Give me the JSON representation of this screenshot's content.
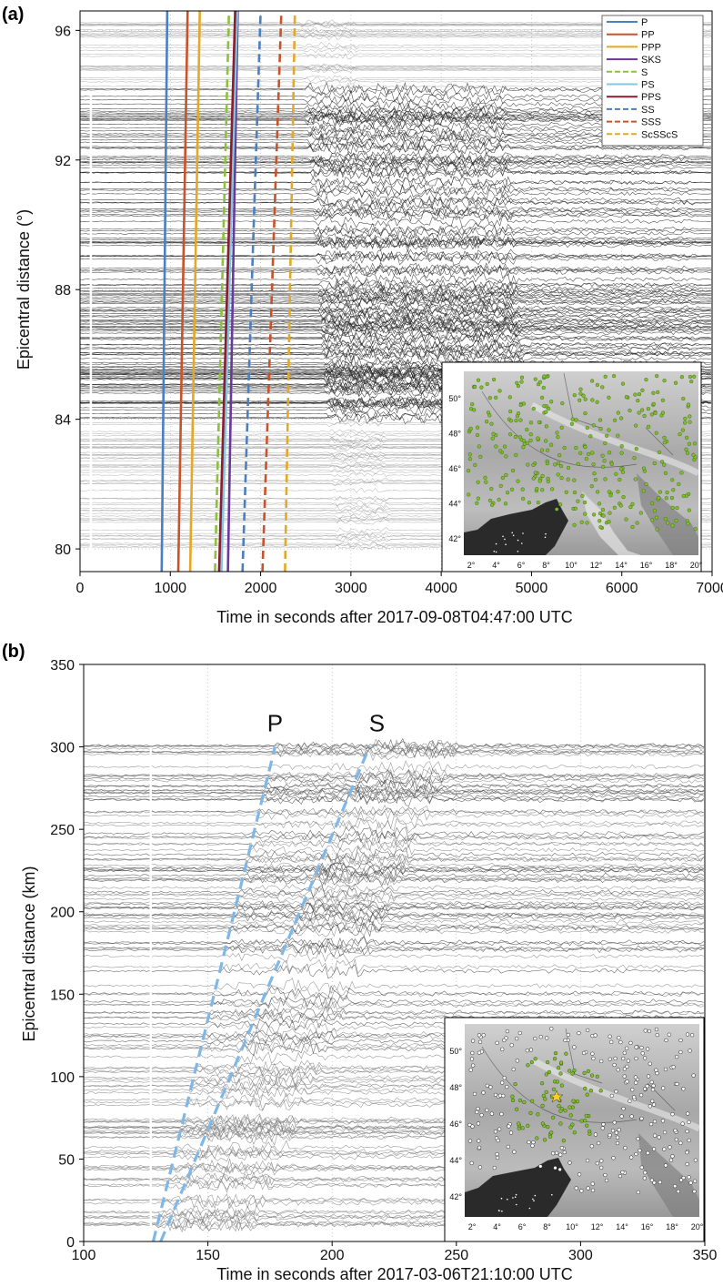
{
  "chart_data": [
    {
      "type": "line",
      "panel_label": "(a)",
      "xlabel": "Time in seconds after 2017-09-08T04:47:00 UTC",
      "ylabel": "Epicentral distance (°)",
      "xlim": [
        0,
        7000
      ],
      "ylim": [
        79.3,
        96.6
      ],
      "xticks": [
        0,
        1000,
        2000,
        3000,
        4000,
        5000,
        6000,
        7000
      ],
      "xtick_labels": [
        "0",
        "1000",
        "2000",
        "3000",
        "4000",
        "5000",
        "6000",
        "7000"
      ],
      "yticks": [
        80,
        84,
        88,
        92,
        96
      ],
      "ytick_labels": [
        "80",
        "84",
        "88",
        "92",
        "96"
      ],
      "grid": true,
      "legend_position": "top-right",
      "series": [
        {
          "name": "P",
          "color": "#4a7fc1",
          "dash": "solid",
          "x": [
            904,
            966
          ],
          "y": [
            79.3,
            96.6
          ]
        },
        {
          "name": "PP",
          "color": "#c8532a",
          "dash": "solid",
          "x": [
            1088,
            1192
          ],
          "y": [
            79.3,
            96.6
          ]
        },
        {
          "name": "PPP",
          "color": "#e3a826",
          "dash": "solid",
          "x": [
            1220,
            1326
          ],
          "y": [
            79.3,
            96.6
          ]
        },
        {
          "name": "SKS",
          "color": "#6a3a9a",
          "dash": "solid",
          "x": [
            1638,
            1746
          ],
          "y": [
            79.3,
            96.6
          ]
        },
        {
          "name": "S",
          "color": "#8bc23c",
          "dash": "dashed",
          "x": [
            1495,
            1650
          ],
          "y": [
            79.3,
            96.6
          ]
        },
        {
          "name": "PS",
          "color": "#80c8e0",
          "dash": "solid",
          "x": [
            1565,
            1740
          ],
          "y": [
            79.3,
            96.6
          ]
        },
        {
          "name": "PPS",
          "color": "#8a1d2e",
          "dash": "solid",
          "x": [
            1540,
            1718
          ],
          "y": [
            79.3,
            96.6
          ]
        },
        {
          "name": "SS",
          "color": "#4a7fc1",
          "dash": "dashed",
          "x": [
            1800,
            2000
          ],
          "y": [
            79.3,
            96.6
          ]
        },
        {
          "name": "SSS",
          "color": "#c8532a",
          "dash": "dashed",
          "x": [
            2020,
            2230
          ],
          "y": [
            79.3,
            96.6
          ]
        },
        {
          "name": "ScSScS",
          "color": "#e3a826",
          "dash": "dashed",
          "x": [
            2270,
            2380
          ],
          "y": [
            79.3,
            96.6
          ]
        }
      ],
      "inset_map": {
        "lon_ticks": [
          "2°",
          "4°",
          "6°",
          "8°",
          "10°",
          "12°",
          "14°",
          "16°",
          "18°",
          "20°"
        ],
        "lat_ticks": [
          "42°",
          "44°",
          "46°",
          "48°",
          "50°"
        ],
        "station_color": "#7fbf2a"
      }
    },
    {
      "type": "line",
      "panel_label": "(b)",
      "xlabel": "Time in seconds after 2017-03-06T21:10:00 UTC",
      "ylabel": "Epicentral distance (km)",
      "xlim": [
        100,
        350
      ],
      "ylim": [
        0,
        350
      ],
      "xticks": [
        100,
        150,
        200,
        250,
        300,
        350
      ],
      "xtick_labels": [
        "100",
        "150",
        "200",
        "250",
        "300",
        "350"
      ],
      "yticks": [
        0,
        50,
        100,
        150,
        200,
        250,
        300,
        350
      ],
      "ytick_labels": [
        "0",
        "50",
        "100",
        "150",
        "200",
        "250",
        "300",
        "350"
      ],
      "grid": true,
      "series": [
        {
          "label": "P",
          "color": "#7fb8e6",
          "dash": "dashed",
          "x": [
            128,
            177
          ],
          "y": [
            0,
            300
          ]
        },
        {
          "label": "S",
          "color": "#7fb8e6",
          "dash": "dashed",
          "x": [
            131,
            215
          ],
          "y": [
            0,
            300
          ]
        }
      ],
      "phase_labels": [
        {
          "text": "P",
          "x": 177,
          "y": 305
        },
        {
          "text": "S",
          "x": 218,
          "y": 305
        }
      ],
      "inset_map": {
        "lon_ticks": [
          "2°",
          "4°",
          "6°",
          "8°",
          "10°",
          "12°",
          "14°",
          "16°",
          "18°",
          "20°"
        ],
        "lat_ticks": [
          "42°",
          "44°",
          "46°",
          "48°",
          "50°"
        ],
        "station_color_active": "#7fbf2a",
        "station_color_other": "#ffffff",
        "epicenter_color": "#f5d020"
      }
    }
  ]
}
